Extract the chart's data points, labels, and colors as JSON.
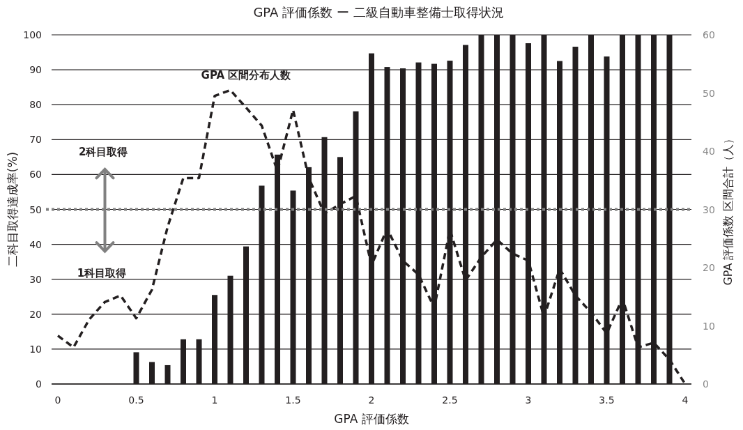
{
  "chart_data": {
    "type": "bar",
    "title": "GPA 評価係数 ー 二級自動車整備士取得状況",
    "xlabel": "GPA 評価係数",
    "ylabel": "二科目取得達成率(%)",
    "y2label": "GPA 評価係数 区間合計（人）",
    "xlim": [
      -0.04,
      4.04
    ],
    "xticks": [
      0,
      0.5,
      1,
      1.5,
      2,
      2.5,
      3,
      3.5,
      4
    ],
    "ylim": [
      0,
      100
    ],
    "yticks": [
      0,
      10,
      20,
      30,
      40,
      50,
      60,
      70,
      80,
      90,
      100
    ],
    "y2lim": [
      0,
      60
    ],
    "y2ticks": [
      0,
      10,
      20,
      30,
      40,
      50,
      60
    ],
    "grid": "y",
    "series": [
      {
        "color": "#231f20",
        "x": [
          0.5,
          0.6,
          0.7,
          0.8,
          0.9,
          1.0,
          1.1,
          1.2,
          1.3,
          1.4,
          1.5,
          1.6,
          1.7,
          1.8,
          1.9,
          2.0,
          2.1,
          2.2,
          2.3,
          2.4,
          2.5,
          2.6,
          2.7,
          2.8,
          2.9,
          3.0,
          3.1,
          3.2,
          3.3,
          3.4,
          3.5,
          3.6,
          3.7,
          3.8,
          3.9
        ],
        "values": [
          9.1,
          6.3,
          5.4,
          12.8,
          12.8,
          25.5,
          31,
          39.4,
          56.8,
          65.7,
          55.4,
          62.1,
          70.7,
          65,
          78.1,
          94.7,
          90.8,
          90.4,
          92.1,
          91.7,
          92.6,
          97.1,
          100,
          100,
          100,
          97.6,
          100,
          92.5,
          96.6,
          100,
          93.8,
          100,
          100,
          100,
          100
        ]
      },
      {
        "type": "line",
        "name": "GPA 区間分布人数",
        "axis": "y2",
        "color": "#231f20",
        "line_style": "dashed",
        "x": [
          0,
          0.1,
          0.2,
          0.3,
          0.4,
          0.5,
          0.6,
          0.7,
          0.8,
          0.9,
          1.0,
          1.1,
          1.2,
          1.3,
          1.4,
          1.5,
          1.6,
          1.7,
          1.8,
          1.9,
          2.0,
          2.1,
          2.2,
          2.3,
          2.4,
          2.5,
          2.6,
          2.7,
          2.8,
          2.9,
          3.0,
          3.1,
          3.2,
          3.3,
          3.4,
          3.5,
          3.6,
          3.7,
          3.8,
          3.9,
          4.0
        ],
        "values": [
          8.3,
          6.3,
          11.1,
          14.1,
          15.2,
          11.3,
          16.2,
          27,
          35.4,
          35.4,
          49.5,
          50.5,
          47.5,
          44.4,
          36.6,
          47.1,
          35.4,
          29.3,
          30.9,
          32.3,
          20.4,
          26.7,
          21.2,
          18.8,
          13.1,
          26.5,
          17.8,
          21.8,
          24.8,
          22.4,
          21.2,
          11.5,
          19.8,
          15.2,
          12.3,
          8.7,
          14.7,
          6.3,
          7.1,
          4.2,
          0
        ]
      }
    ],
    "ref_lines": [
      {
        "axis": "y",
        "value": 50,
        "color": "#808080",
        "line_style": "dotted"
      }
    ],
    "annotations": [
      "2科目取得",
      "1科目取得"
    ]
  }
}
